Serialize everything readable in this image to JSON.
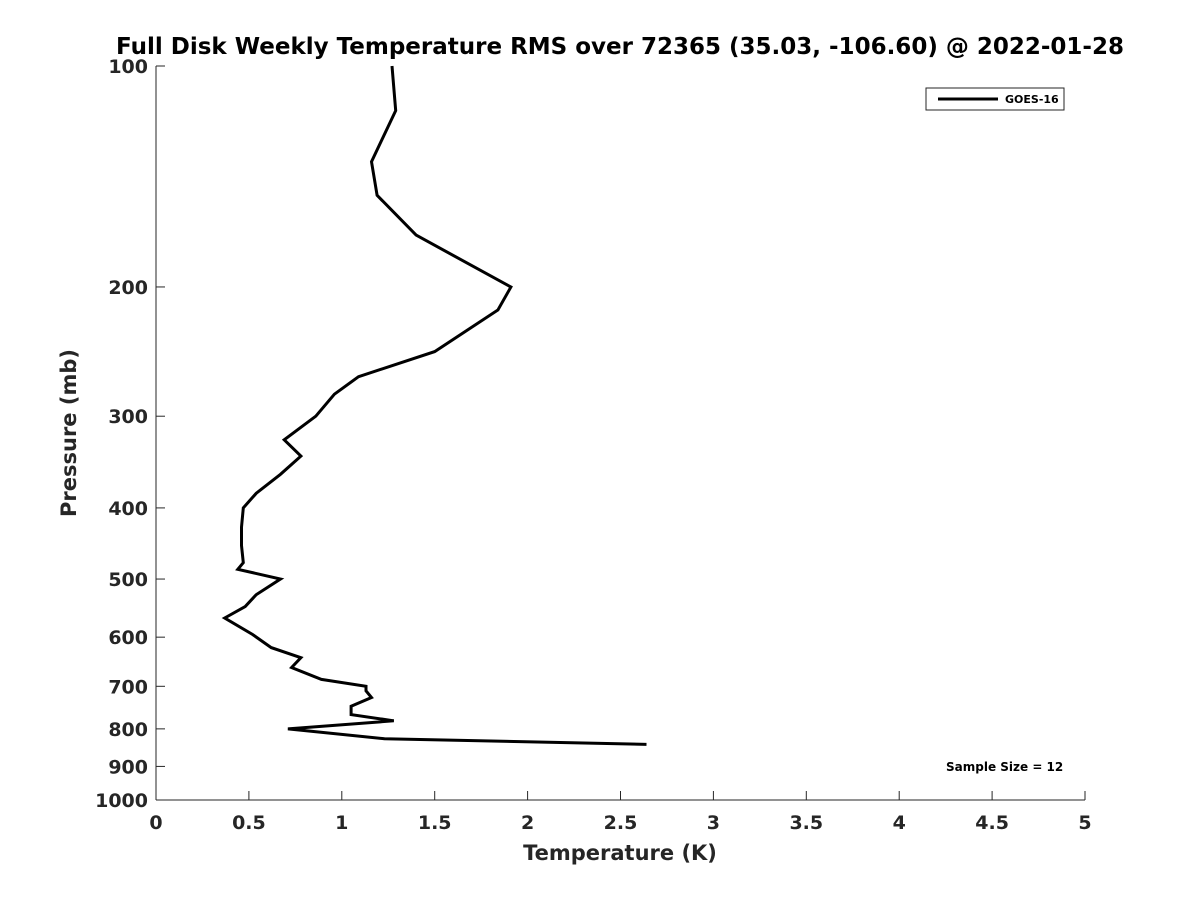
{
  "chart_data": {
    "type": "line",
    "title": "Full Disk Weekly Temperature RMS over 72365 (35.03, -106.60) @ 2022-01-28",
    "xlabel": "Temperature (K)",
    "ylabel": "Pressure (mb)",
    "xlim": [
      0,
      5
    ],
    "ylim": [
      1000,
      100
    ],
    "y_scale": "log",
    "x_ticks": [
      0,
      0.5,
      1,
      1.5,
      2,
      2.5,
      3,
      3.5,
      4,
      4.5,
      5
    ],
    "x_tick_labels": [
      "0",
      "0.5",
      "1",
      "1.5",
      "2",
      "2.5",
      "3",
      "3.5",
      "4",
      "4.5",
      "5"
    ],
    "y_ticks": [
      100,
      200,
      300,
      400,
      500,
      600,
      700,
      800,
      900,
      1000
    ],
    "y_tick_labels": [
      "100",
      "200",
      "300",
      "400",
      "500",
      "600",
      "700",
      "800",
      "900",
      "1000"
    ],
    "grid": false,
    "legend_position": "top-right",
    "annotation": "Sample Size = 12",
    "series": [
      {
        "name": "GOES-16",
        "color": "#000000",
        "points": [
          [
            1.27,
            100
          ],
          [
            1.29,
            115
          ],
          [
            1.16,
            135
          ],
          [
            1.19,
            150
          ],
          [
            1.4,
            170
          ],
          [
            1.91,
            200
          ],
          [
            1.84,
            215
          ],
          [
            1.5,
            245
          ],
          [
            1.09,
            265
          ],
          [
            0.96,
            280
          ],
          [
            0.86,
            300
          ],
          [
            0.69,
            323
          ],
          [
            0.78,
            340
          ],
          [
            0.67,
            360
          ],
          [
            0.54,
            382
          ],
          [
            0.47,
            400
          ],
          [
            0.46,
            425
          ],
          [
            0.46,
            450
          ],
          [
            0.47,
            475
          ],
          [
            0.44,
            485
          ],
          [
            0.67,
            500
          ],
          [
            0.54,
            525
          ],
          [
            0.48,
            545
          ],
          [
            0.37,
            565
          ],
          [
            0.52,
            595
          ],
          [
            0.62,
            620
          ],
          [
            0.78,
            640
          ],
          [
            0.73,
            660
          ],
          [
            0.89,
            685
          ],
          [
            1.13,
            700
          ],
          [
            1.13,
            710
          ],
          [
            1.16,
            725
          ],
          [
            1.05,
            745
          ],
          [
            1.05,
            765
          ],
          [
            1.28,
            780
          ],
          [
            0.71,
            800
          ],
          [
            1.23,
            825
          ],
          [
            2.64,
            840
          ]
        ]
      }
    ]
  }
}
